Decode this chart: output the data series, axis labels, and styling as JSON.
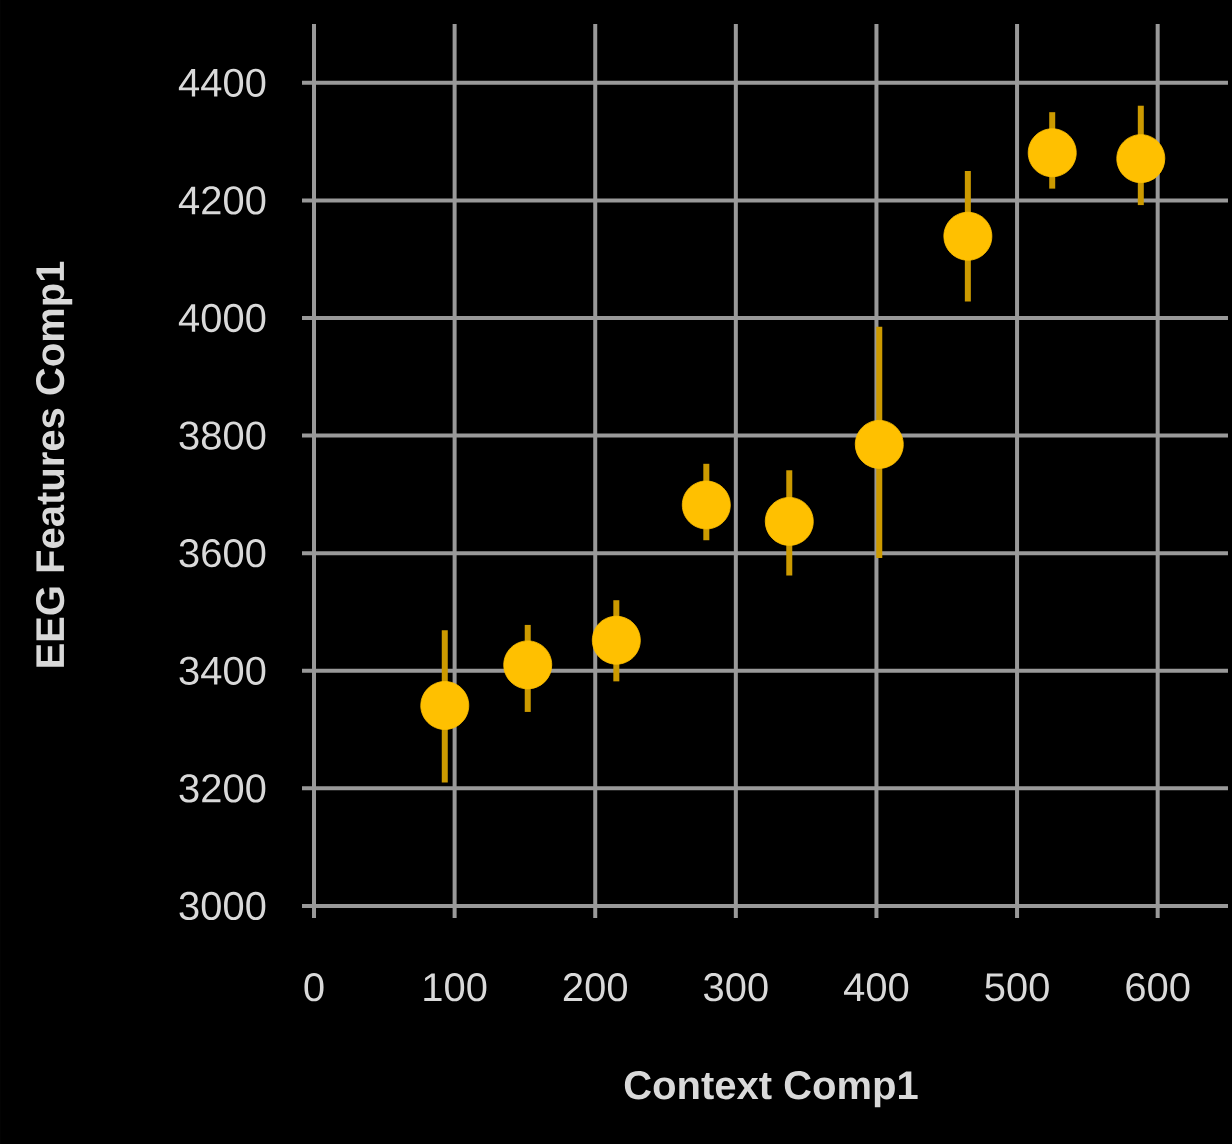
{
  "chart_data": {
    "type": "scatter",
    "xlabel": "Context Comp1",
    "ylabel": "EEG Features Comp1",
    "x": [
      93,
      152,
      215,
      279,
      338,
      402,
      465,
      525,
      588
    ],
    "values": [
      3341,
      3410,
      3452,
      3682,
      3654,
      3785,
      4139,
      4281,
      4271
    ],
    "errors": [
      [
        3210,
        3469
      ],
      [
        3330,
        3478
      ],
      [
        3382,
        3520
      ],
      [
        3622,
        3752
      ],
      [
        3562,
        3741
      ],
      [
        3592,
        3985
      ],
      [
        4028,
        4250
      ],
      [
        4220,
        4350
      ],
      [
        4192,
        4361
      ]
    ],
    "color": "#ffc000",
    "xlim": [
      0,
      650
    ],
    "ylim": [
      3000,
      4500
    ],
    "xticks": [
      0,
      100,
      200,
      300,
      400,
      500,
      600
    ],
    "yticks": [
      3000,
      3200,
      3400,
      3600,
      3800,
      4000,
      4200,
      4400
    ],
    "grid": true,
    "marker": "circle"
  }
}
